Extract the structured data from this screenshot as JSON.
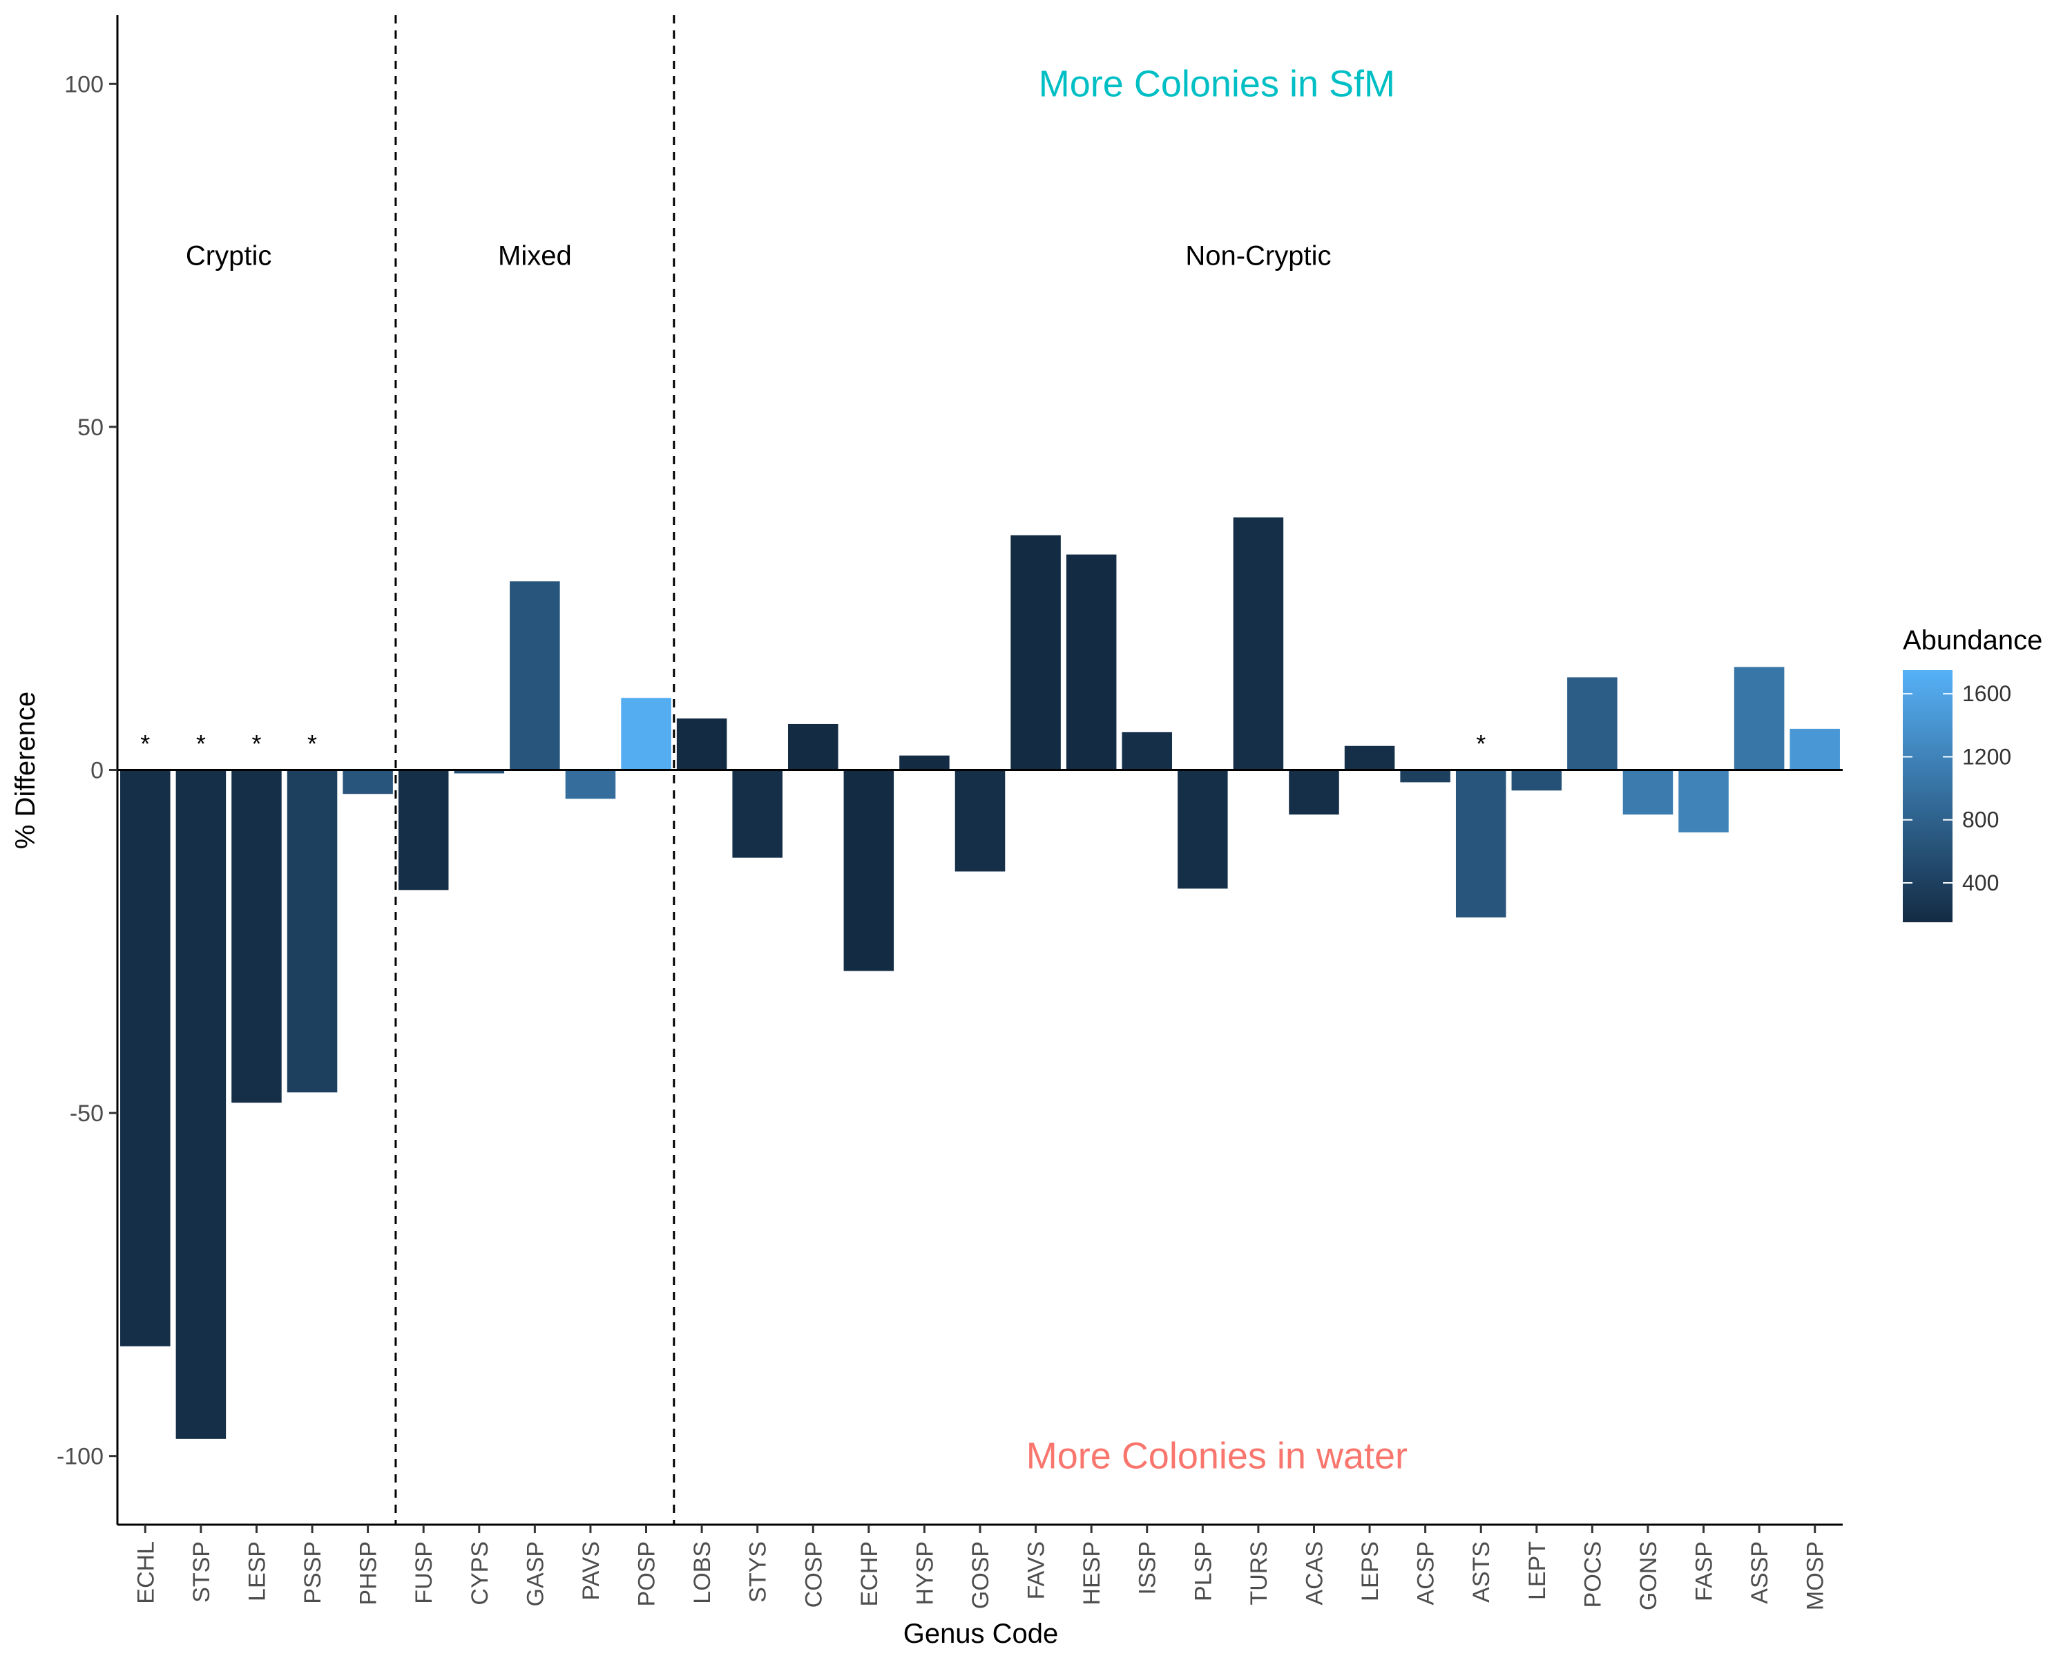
{
  "chart_data": {
    "type": "bar",
    "xlabel": "Genus Code",
    "ylabel": "% Difference",
    "ylim": [
      -110,
      110
    ],
    "yticks": [
      100,
      50,
      0,
      -50,
      -100
    ],
    "ytick_labels": [
      "100",
      "50",
      "0",
      "-50",
      "-100"
    ],
    "grid": false,
    "categories": [
      "ECHL",
      "STSP",
      "LESP",
      "PSSP",
      "PHSP",
      "FUSP",
      "CYPS",
      "GASP",
      "PAVS",
      "POSP",
      "LOBS",
      "STYS",
      "COSP",
      "ECHP",
      "HYSP",
      "GOSP",
      "FAVS",
      "HESP",
      "ISSP",
      "PLSP",
      "TURS",
      "ACAS",
      "LEPS",
      "ACSP",
      "ASTS",
      "LEPT",
      "POCS",
      "GONS",
      "FASP",
      "ASSP",
      "MOSP"
    ],
    "values": [
      -84,
      -97.5,
      -48.5,
      -47,
      -3.5,
      -17.5,
      -0.5,
      27.5,
      -4.2,
      10.5,
      7.5,
      -12.8,
      6.7,
      -29.3,
      2.1,
      -14.8,
      34.2,
      31.4,
      5.5,
      -17.3,
      36.8,
      -6.5,
      3.5,
      -1.8,
      -21.5,
      -3,
      13.5,
      -6.5,
      -9.1,
      15,
      6
    ]
  },
  "abundance": [
    200,
    200,
    200,
    400,
    650,
    200,
    600,
    650,
    950,
    1700,
    150,
    200,
    150,
    150,
    150,
    200,
    150,
    150,
    200,
    200,
    200,
    200,
    200,
    400,
    650,
    600,
    750,
    1100,
    1200,
    1050,
    1450
  ],
  "significant": [
    "ECHL",
    "STSP",
    "LESP",
    "PSSP",
    "ASTS"
  ],
  "star_symbol": "*",
  "group_boundaries": [
    4.5,
    9.5
  ],
  "groups": [
    {
      "label": "Cryptic",
      "center": 1.5
    },
    {
      "label": "Mixed",
      "center": 7
    },
    {
      "label": "Non-Cryptic",
      "center": 20
    }
  ],
  "group_label_value": 75,
  "annotations": {
    "top": {
      "text": "More Colonies in SfM",
      "color": "#00bfc4",
      "value": 100
    },
    "bottom": {
      "text": "More Colonies in water",
      "color": "#f8766d",
      "value": -100
    }
  },
  "legend": {
    "title": "Abundance",
    "ticks": [
      1600,
      1200,
      800,
      400
    ],
    "tick_labels": [
      "1600",
      "1200",
      "800",
      "400"
    ],
    "range": [
      150,
      1750
    ],
    "color_low": "#132b43",
    "color_high": "#56b1f7"
  }
}
